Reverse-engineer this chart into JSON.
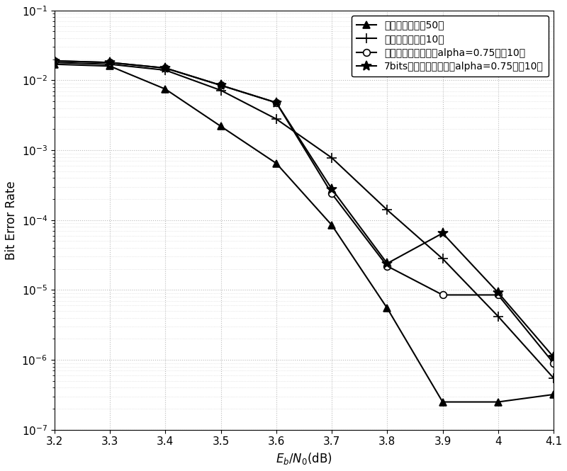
{
  "series": [
    {
      "label": "无量化和积迭代50次",
      "marker": "^",
      "x": [
        3.2,
        3.3,
        3.4,
        3.5,
        3.6,
        3.7,
        3.8,
        3.9,
        4.0,
        4.1
      ],
      "y": [
        0.017,
        0.016,
        0.0075,
        0.0022,
        0.00065,
        8.5e-05,
        5.5e-06,
        2.5e-07,
        2.5e-07,
        3.2e-07
      ]
    },
    {
      "label": "无量化和积迭代10次",
      "marker": "+",
      "x": [
        3.2,
        3.3,
        3.4,
        3.5,
        3.6,
        3.7,
        3.8,
        3.9,
        4.0,
        4.1
      ],
      "y": [
        0.018,
        0.017,
        0.014,
        0.0072,
        0.0028,
        0.00078,
        0.00014,
        2.8e-05,
        4.2e-06,
        5.5e-07
      ]
    },
    {
      "label": "无量化归一化最小和alpha=0.75迭代10次",
      "marker": "o",
      "x": [
        3.2,
        3.3,
        3.4,
        3.5,
        3.6,
        3.7,
        3.8,
        3.9,
        4.0,
        4.1
      ],
      "y": [
        0.019,
        0.018,
        0.015,
        0.0085,
        0.0048,
        0.00024,
        2.2e-05,
        8.5e-06,
        8.5e-06,
        9e-07
      ]
    },
    {
      "label": "7bits量化归一化最小和alpha=0.75迭代10次",
      "marker": "*",
      "x": [
        3.2,
        3.3,
        3.4,
        3.5,
        3.6,
        3.7,
        3.8,
        3.9,
        4.0,
        4.1
      ],
      "y": [
        0.019,
        0.018,
        0.015,
        0.0085,
        0.0048,
        0.00028,
        2.4e-05,
        6.5e-05,
        9.2e-06,
        1.1e-06
      ]
    }
  ],
  "xlabel": "E_b/N_0(dB)",
  "ylabel": "Bit Error Rate",
  "xlim": [
    3.2,
    4.1
  ],
  "line_color": "#000000",
  "bg_color": "#ffffff",
  "grid_color": "#aaaaaa",
  "legend_loc": "upper right",
  "fontsize_label": 12,
  "fontsize_legend": 10,
  "fontsize_tick": 11,
  "markers": [
    "^",
    "+",
    "o",
    "*"
  ],
  "markersizes": [
    7,
    10,
    7,
    10
  ],
  "linewidth": 1.5
}
